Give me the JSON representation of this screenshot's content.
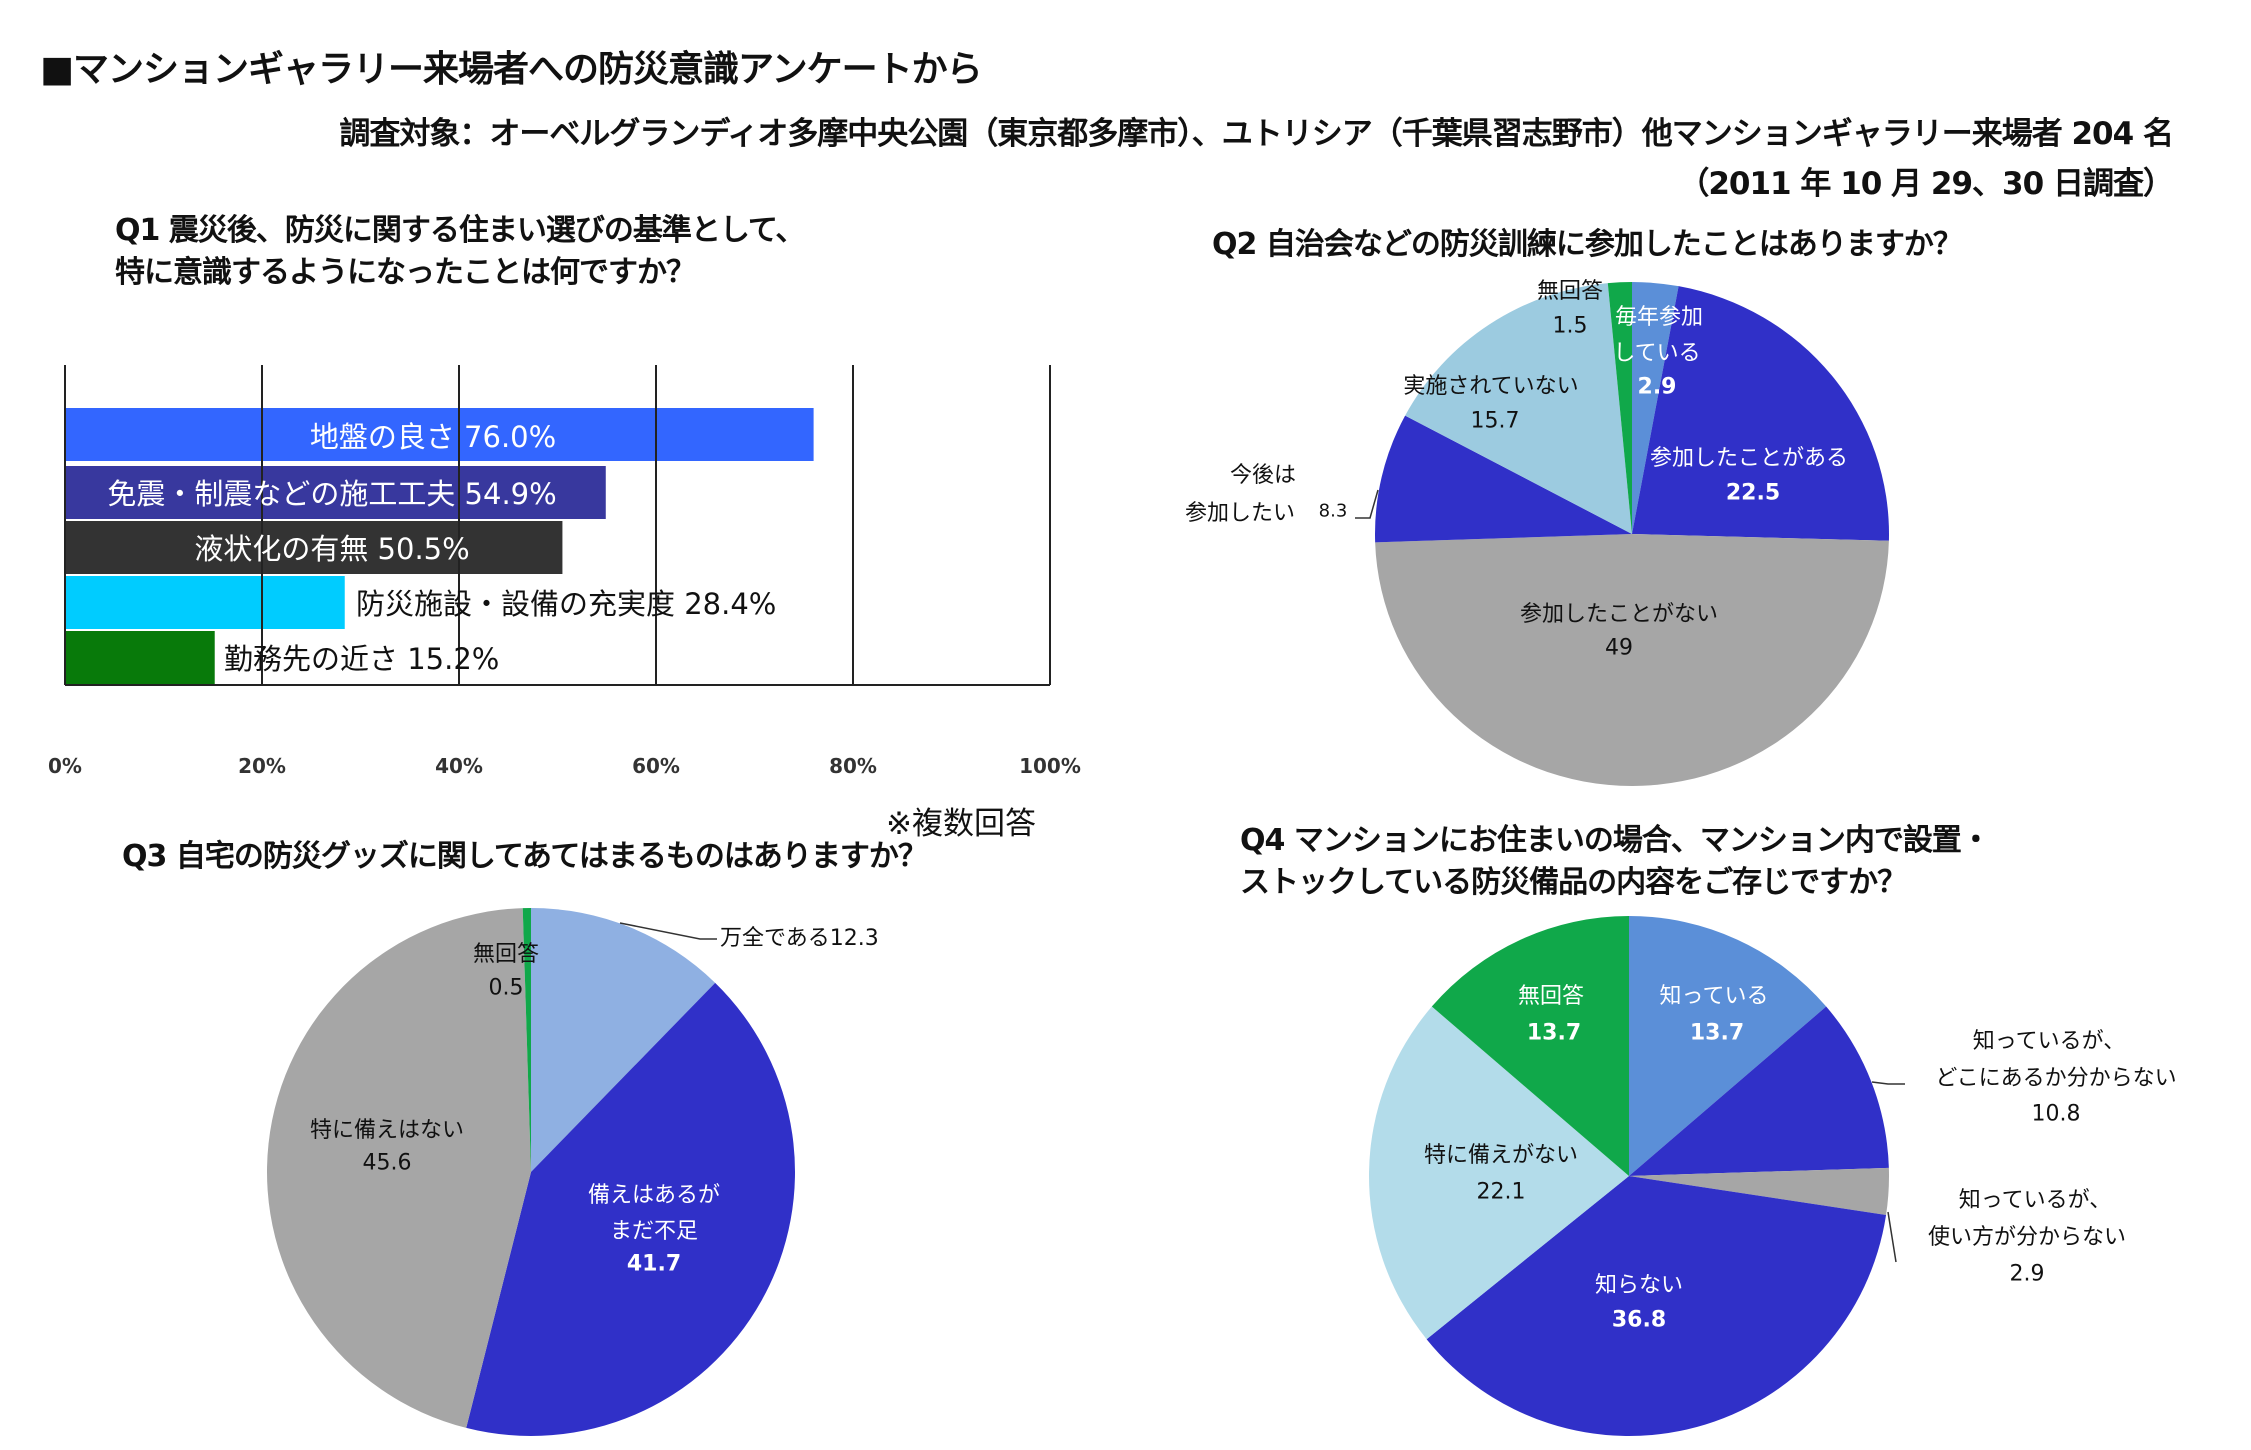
{
  "header": {
    "title": "■マンションギャラリー来場者への防災意識アンケートから",
    "subject": "調査対象：オーベルグランディオ多摩中央公園（東京都多摩市）、ユトリシア（千葉県習志野市）他マンションギャラリー来場者 204 名",
    "date": "（2011 年 10 月 29、30 日調査）"
  },
  "note": "※複数回答",
  "chart_data": [
    {
      "id": "q1",
      "type": "bar",
      "orientation": "horizontal",
      "title_lines": [
        "Q1 震災後、防災に関する住まい選びの基準として、",
        "特に意識するようになったことは何ですか？"
      ],
      "categories": [
        "地盤の良さ",
        "免震・制震などの施工工夫",
        "液状化の有無",
        "防災施設・設備の充実度",
        "勤務先の近さ"
      ],
      "values": [
        76.0,
        54.9,
        50.5,
        28.4,
        15.2
      ],
      "labels": [
        "地盤の良さ 76.0%",
        "免震・制震などの施工工夫 54.9%",
        "液状化の有無 50.5%",
        "防災施設・設備の充実度 28.4%",
        "勤務先の近さ 15.2%"
      ],
      "colors": [
        "#3366ff",
        "#38389e",
        "#333333",
        "#00ccff",
        "#087a0a"
      ],
      "xlim": [
        0,
        100
      ],
      "ticks": [
        "0%",
        "20%",
        "40%",
        "60%",
        "80%",
        "100%"
      ],
      "grid": true
    },
    {
      "id": "q2",
      "type": "pie",
      "title": "Q2 自治会などの防災訓練に参加したことはありますか？",
      "slices": [
        {
          "label": "毎年参加している",
          "value": 2.9,
          "color": "#5b8fd8"
        },
        {
          "label": "参加したことがある",
          "value": 22.5,
          "color": "#3030c8"
        },
        {
          "label": "参加したことがない",
          "value": 49,
          "color": "#a6a6a6"
        },
        {
          "label": "今後は参加したい",
          "value": 8.3,
          "color": "#3030c8"
        },
        {
          "label": "実施されていない",
          "value": 15.7,
          "color": "#9ccbe0"
        },
        {
          "label": "無回答",
          "value": 1.5,
          "color": "#10a84a"
        }
      ]
    },
    {
      "id": "q3",
      "type": "pie",
      "title": "Q3 自宅の防災グッズに関してあてはまるものはありますか？",
      "slices": [
        {
          "label": "万全である",
          "value": 12.3,
          "color": "#8fb0e2"
        },
        {
          "label": "備えはあるがまだ不足",
          "value": 41.7,
          "color": "#3030c8"
        },
        {
          "label": "特に備えはない",
          "value": 45.6,
          "color": "#a6a6a6"
        },
        {
          "label": "無回答",
          "value": 0.5,
          "color": "#10a84a"
        }
      ]
    },
    {
      "id": "q4",
      "type": "pie",
      "title_lines": [
        "Q4 マンションにお住まいの場合、マンション内で設置・",
        "ストックしている防災備品の内容をご存じですか？"
      ],
      "slices": [
        {
          "label": "知っている",
          "value": 13.7,
          "color": "#5b8fd8"
        },
        {
          "label": "知っているが、どこにあるか分からない",
          "value": 10.8,
          "color": "#3030c8"
        },
        {
          "label": "知っているが、使い方が分からない",
          "value": 2.9,
          "color": "#a6a6a6"
        },
        {
          "label": "知らない",
          "value": 36.8,
          "color": "#3030c8"
        },
        {
          "label": "特に備えがない",
          "value": 22.1,
          "color": "#b3dcea"
        },
        {
          "label": "無回答",
          "value": 13.7,
          "color": "#10a84a"
        }
      ]
    }
  ],
  "pie_text": {
    "q2": {
      "s0a": "毎年参加",
      "s0b": "している",
      "s0v": "2.9",
      "s1a": "参加したことがある",
      "s1v": "22.5",
      "s2a": "参加したことがない",
      "s2v": "49",
      "s3a": "今後は",
      "s3b": "参加したい",
      "s3v": "8.3",
      "s4a": "実施されていない",
      "s4v": "15.7",
      "s5a": "無回答",
      "s5v": "1.5"
    },
    "q3": {
      "s0a": "万全である",
      "s0v": "12.3",
      "s1a": "備えはあるが",
      "s1b": "まだ不足",
      "s1v": "41.7",
      "s2a": "特に備えはない",
      "s2v": "45.6",
      "s3a": "無回答",
      "s3v": "0.5"
    },
    "q4": {
      "s0a": "知っている",
      "s0v": "13.7",
      "s1a": "知っているが、",
      "s1b": "どこにあるか分からない",
      "s1v": "10.8",
      "s2a": "知っているが、",
      "s2b": "使い方が分からない",
      "s2v": "2.9",
      "s3a": "知らない",
      "s3v": "36.8",
      "s4a": "特に備えがない",
      "s4v": "22.1",
      "s5a": "無回答",
      "s5v": "13.7"
    }
  }
}
